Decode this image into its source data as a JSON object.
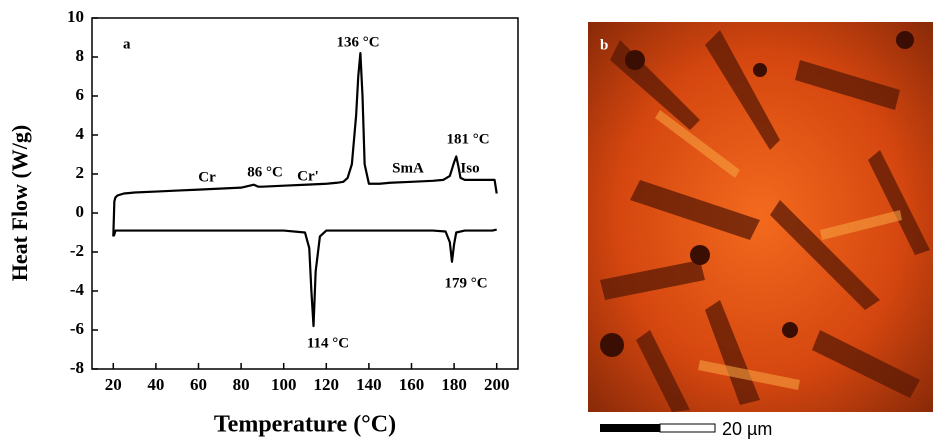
{
  "chart_data": {
    "type": "line",
    "xlabel": "Temperature (°C)",
    "ylabel": "Heat Flow (W/g)",
    "xlim": [
      10,
      210
    ],
    "xticks": [
      20,
      40,
      60,
      80,
      100,
      120,
      140,
      160,
      180,
      200
    ],
    "ylim": [
      -8,
      10
    ],
    "yticks": [
      -8,
      -6,
      -4,
      -2,
      0,
      2,
      4,
      6,
      8,
      10
    ],
    "series": [
      {
        "color": "#000000",
        "x": [
          20,
          20.5,
          21,
          22,
          25,
          30,
          40,
          50,
          60,
          70,
          80,
          84,
          86,
          88,
          90,
          100,
          110,
          120,
          125,
          128,
          130,
          132,
          134,
          135,
          136,
          137,
          138,
          140,
          145,
          150,
          160,
          170,
          175,
          178,
          180,
          181,
          182,
          183,
          185,
          190,
          195,
          199,
          200
        ],
        "values": [
          -1.2,
          0.6,
          0.8,
          0.9,
          1.0,
          1.05,
          1.1,
          1.15,
          1.2,
          1.25,
          1.3,
          1.4,
          1.45,
          1.35,
          1.35,
          1.4,
          1.45,
          1.5,
          1.55,
          1.6,
          1.8,
          2.5,
          5,
          7,
          8.2,
          6,
          2.5,
          1.5,
          1.5,
          1.55,
          1.6,
          1.65,
          1.7,
          1.9,
          2.6,
          2.9,
          2.4,
          1.8,
          1.7,
          1.7,
          1.7,
          1.7,
          1.0
        ]
      },
      {
        "color": "#000000",
        "x": [
          200,
          198,
          190,
          185,
          181,
          180,
          179,
          178,
          176,
          170,
          160,
          150,
          140,
          130,
          120,
          117,
          115,
          114,
          113,
          112,
          110,
          100,
          80,
          60,
          40,
          25,
          21,
          20.5,
          20
        ],
        "values": [
          -0.85,
          -0.9,
          -0.9,
          -0.9,
          -1.0,
          -1.6,
          -2.5,
          -1.5,
          -0.95,
          -0.9,
          -0.9,
          -0.9,
          -0.9,
          -0.9,
          -0.9,
          -1.2,
          -3,
          -5.8,
          -4,
          -1.8,
          -1.0,
          -0.9,
          -0.9,
          -0.9,
          -0.9,
          -0.9,
          -0.9,
          -1.1,
          -1.2
        ]
      }
    ],
    "annotations": [
      "a",
      "136 °C",
      "181 °C",
      "Cr",
      "86 °C",
      "Cr'",
      "SmA",
      "Iso",
      "114 °C",
      "179 °C"
    ]
  },
  "image_panel": {
    "label": "b",
    "scale_bar": "20 µm"
  }
}
